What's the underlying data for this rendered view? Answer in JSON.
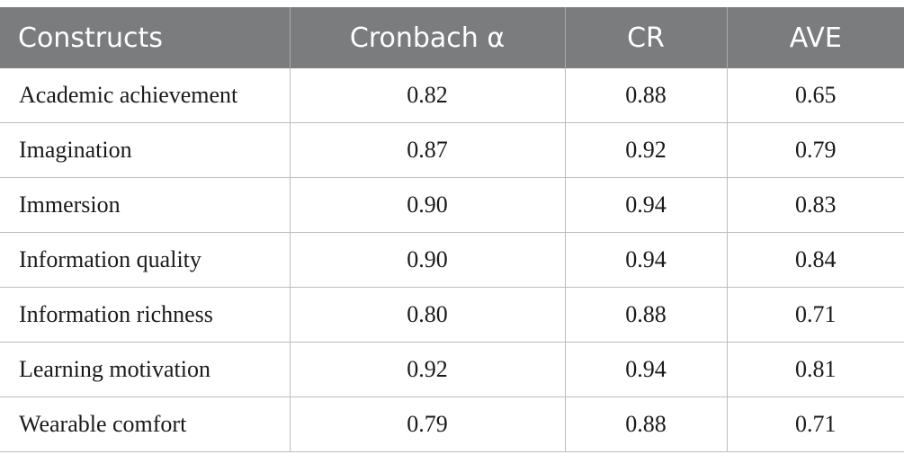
{
  "table": {
    "headers": [
      "Constructs",
      "Cronbach α",
      "CR",
      "AVE"
    ],
    "rows": [
      {
        "construct": "Academic achievement",
        "cronbach_alpha": "0.82",
        "cr": "0.88",
        "ave": "0.65"
      },
      {
        "construct": "Imagination",
        "cronbach_alpha": "0.87",
        "cr": "0.92",
        "ave": "0.79"
      },
      {
        "construct": "Immersion",
        "cronbach_alpha": "0.90",
        "cr": "0.94",
        "ave": "0.83"
      },
      {
        "construct": "Information quality",
        "cronbach_alpha": "0.90",
        "cr": "0.94",
        "ave": "0.84"
      },
      {
        "construct": "Information richness",
        "cronbach_alpha": "0.80",
        "cr": "0.88",
        "ave": "0.71"
      },
      {
        "construct": "Learning motivation",
        "cronbach_alpha": "0.92",
        "cr": "0.94",
        "ave": "0.81"
      },
      {
        "construct": "Wearable comfort",
        "cronbach_alpha": "0.79",
        "cr": "0.88",
        "ave": "0.71"
      }
    ]
  }
}
